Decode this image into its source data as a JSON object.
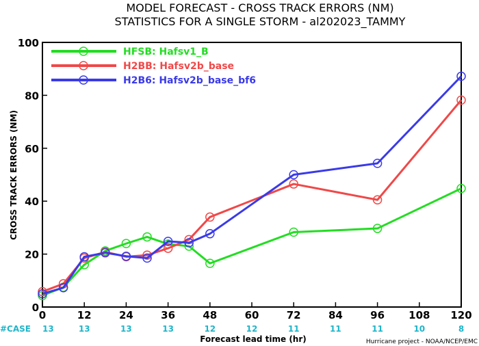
{
  "chart_data": {
    "type": "line",
    "title": "MODEL FORECAST - CROSS TRACK ERRORS (NM)",
    "subtitle": "STATISTICS FOR A SINGLE STORM - al202023_TAMMY",
    "xlabel": "Forecast lead time (hr)",
    "ylabel": "CROSS TRACK ERRORS (NM)",
    "xlim": [
      0,
      120
    ],
    "ylim": [
      0,
      100
    ],
    "x_ticks": [
      0,
      12,
      24,
      36,
      48,
      60,
      72,
      84,
      96,
      108,
      120
    ],
    "y_ticks": [
      0,
      20,
      40,
      60,
      80,
      100
    ],
    "grid": false,
    "legend_position": "top-left",
    "case_label": "#CASE",
    "case_color": "#1fb5c9",
    "cases": [
      13,
      13,
      13,
      13,
      12,
      12,
      11,
      11,
      11,
      10,
      8
    ],
    "credit": "Hurricane project - NOAA/NCEP/EMC",
    "series": [
      {
        "name": "HFSB: Hafsv1_B",
        "color": "#22dd22",
        "x": [
          0,
          6,
          12,
          18,
          24,
          30,
          36,
          42,
          48,
          72,
          96,
          120
        ],
        "y": [
          4.3,
          7.5,
          16,
          21.2,
          24,
          26.5,
          23.8,
          23,
          16.5,
          28.3,
          29.7,
          44.8
        ]
      },
      {
        "name": "H2BB: Hafsv2b_base",
        "color": "#f04848",
        "x": [
          0,
          6,
          12,
          18,
          24,
          30,
          36,
          42,
          48,
          72,
          96,
          120
        ],
        "y": [
          5.8,
          8.8,
          18.5,
          20.8,
          19,
          19.6,
          22.2,
          25.5,
          34,
          46.5,
          40.5,
          78.2
        ]
      },
      {
        "name": "H2B6: Hafsv2b_base_bf6",
        "color": "#3a3ae8",
        "x": [
          0,
          6,
          12,
          18,
          24,
          30,
          36,
          42,
          48,
          72,
          96,
          120
        ],
        "y": [
          5,
          7.3,
          19,
          20.5,
          19.2,
          18.5,
          24.8,
          24.3,
          27.7,
          50,
          54.3,
          87.2
        ]
      }
    ]
  }
}
